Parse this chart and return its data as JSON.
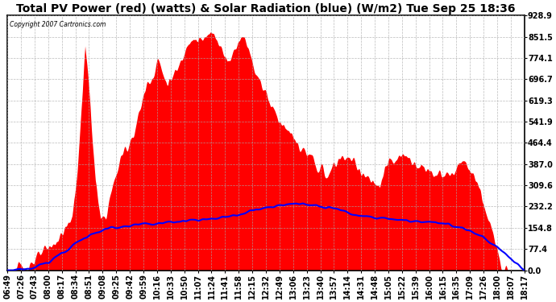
{
  "title": "Total PV Power (red) (watts) & Solar Radiation (blue) (W/m2) Tue Sep 25 18:36",
  "copyright_text": "Copyright 2007 Cartronics.com",
  "background_color": "#ffffff",
  "plot_bg_color": "#ffffff",
  "y_min": 0.0,
  "y_max": 928.9,
  "y_ticks": [
    0.0,
    77.4,
    154.8,
    232.2,
    309.6,
    387.0,
    464.4,
    541.9,
    619.3,
    696.7,
    774.1,
    851.5,
    928.9
  ],
  "pv_color": "#ff0000",
  "solar_color": "#0000ff",
  "grid_color": "#aaaaaa",
  "title_fontsize": 10,
  "tick_fontsize": 7,
  "x_labels": [
    "06:49",
    "07:26",
    "07:43",
    "08:00",
    "08:17",
    "08:34",
    "08:51",
    "09:08",
    "09:25",
    "09:42",
    "09:59",
    "10:16",
    "10:33",
    "10:50",
    "11:07",
    "11:24",
    "11:41",
    "11:58",
    "12:15",
    "12:32",
    "12:49",
    "13:06",
    "13:23",
    "13:40",
    "13:57",
    "14:14",
    "14:31",
    "14:48",
    "15:05",
    "15:22",
    "15:39",
    "16:00",
    "16:15",
    "16:35",
    "17:09",
    "17:26",
    "18:00",
    "18:07",
    "18:17"
  ],
  "pv_keypoints_t": [
    0.0,
    0.02,
    0.04,
    0.06,
    0.08,
    0.1,
    0.115,
    0.125,
    0.13,
    0.135,
    0.14,
    0.145,
    0.15,
    0.16,
    0.17,
    0.18,
    0.19,
    0.2,
    0.21,
    0.22,
    0.23,
    0.24,
    0.25,
    0.26,
    0.27,
    0.28,
    0.29,
    0.3,
    0.31,
    0.32,
    0.33,
    0.34,
    0.35,
    0.36,
    0.37,
    0.38,
    0.39,
    0.4,
    0.41,
    0.42,
    0.43,
    0.44,
    0.45,
    0.46,
    0.47,
    0.48,
    0.49,
    0.5,
    0.51,
    0.52,
    0.53,
    0.54,
    0.55,
    0.56,
    0.57,
    0.58,
    0.59,
    0.6,
    0.61,
    0.62,
    0.63,
    0.64,
    0.65,
    0.66,
    0.67,
    0.68,
    0.69,
    0.7,
    0.71,
    0.72,
    0.73,
    0.74,
    0.75,
    0.76,
    0.77,
    0.78,
    0.8,
    0.82,
    0.84,
    0.86,
    0.87,
    0.88,
    0.89,
    0.9,
    0.91,
    0.92,
    0.93,
    0.94,
    0.95,
    0.96,
    0.97,
    0.98,
    1.0
  ],
  "pv_keypoints_v": [
    0,
    5,
    20,
    50,
    80,
    120,
    160,
    200,
    260,
    370,
    500,
    650,
    830,
    600,
    320,
    180,
    200,
    280,
    350,
    420,
    480,
    520,
    560,
    610,
    640,
    680,
    720,
    700,
    680,
    700,
    730,
    750,
    800,
    820,
    830,
    840,
    830,
    820,
    800,
    790,
    810,
    830,
    820,
    780,
    750,
    720,
    680,
    650,
    600,
    570,
    540,
    510,
    490,
    460,
    440,
    420,
    400,
    380,
    360,
    340,
    380,
    400,
    420,
    410,
    390,
    370,
    350,
    330,
    310,
    290,
    380,
    390,
    400,
    410,
    420,
    400,
    380,
    360,
    340,
    350,
    380,
    390,
    380,
    350,
    300,
    250,
    180,
    120,
    60,
    20,
    5,
    2,
    0
  ],
  "solar_keypoints_t": [
    0.0,
    0.04,
    0.08,
    0.1,
    0.12,
    0.14,
    0.16,
    0.18,
    0.2,
    0.22,
    0.24,
    0.26,
    0.28,
    0.3,
    0.32,
    0.34,
    0.36,
    0.38,
    0.4,
    0.42,
    0.44,
    0.46,
    0.48,
    0.5,
    0.52,
    0.54,
    0.56,
    0.58,
    0.6,
    0.62,
    0.64,
    0.66,
    0.68,
    0.7,
    0.72,
    0.74,
    0.76,
    0.78,
    0.8,
    0.82,
    0.84,
    0.86,
    0.88,
    0.9,
    0.92,
    0.94,
    0.96,
    0.98,
    1.0
  ],
  "solar_keypoints_v": [
    0,
    5,
    30,
    55,
    80,
    110,
    130,
    145,
    155,
    160,
    165,
    168,
    170,
    172,
    175,
    178,
    182,
    185,
    188,
    192,
    200,
    210,
    220,
    228,
    235,
    240,
    242,
    240,
    235,
    228,
    220,
    210,
    200,
    195,
    190,
    185,
    182,
    178,
    175,
    172,
    170,
    165,
    155,
    140,
    120,
    95,
    65,
    30,
    0
  ]
}
